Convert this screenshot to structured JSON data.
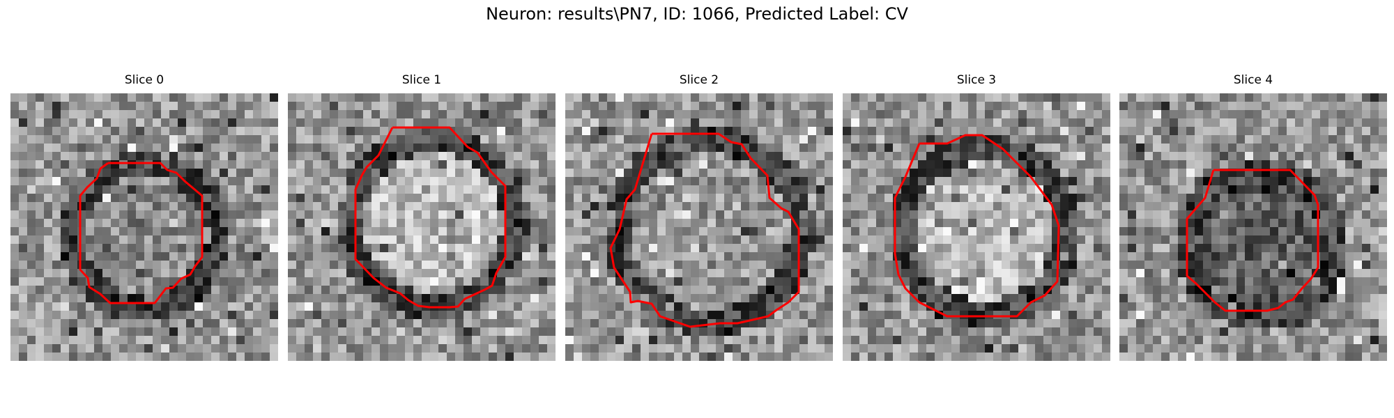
{
  "figure": {
    "title": "Neuron: results\\PN7, ID: 1066, Predicted Label: CV"
  },
  "colors": {
    "contour": "#ff0000",
    "background": "#ffffff",
    "text": "#000000"
  },
  "slices": [
    {
      "title": "Slice 0"
    },
    {
      "title": "Slice 1"
    },
    {
      "title": "Slice 2"
    },
    {
      "title": "Slice 3"
    },
    {
      "title": "Slice 4"
    }
  ]
}
